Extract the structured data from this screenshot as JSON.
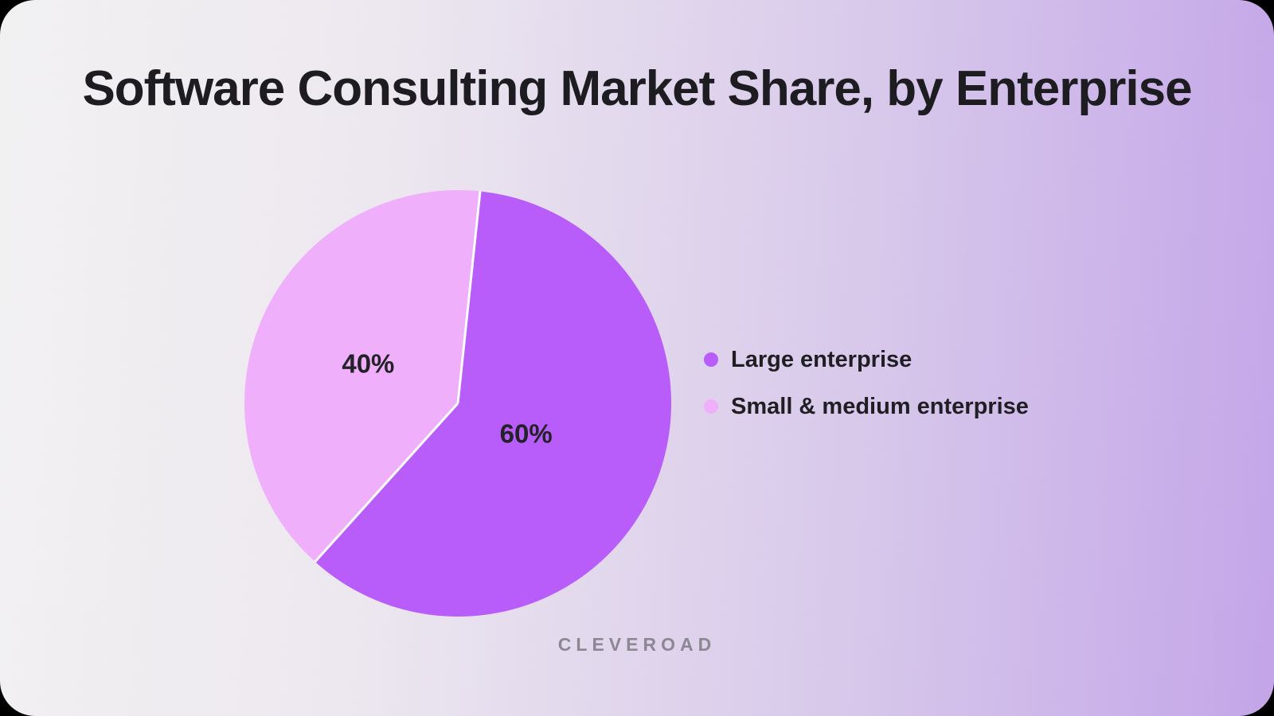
{
  "title": "Software Consulting Market Share, by Enterprise",
  "footer": {
    "brand": "CLEVEROAD"
  },
  "colors": {
    "background_left": "#f4f3f4",
    "background_right": "#c4a5ea",
    "title_text": "#1d1c20",
    "legend_text": "#1f1e23",
    "brand_text": "#8b8892",
    "slice_separator": "#ffffff"
  },
  "chart_data": {
    "type": "pie",
    "title": "Software Consulting Market Share, by Enterprise",
    "legend_position": "right",
    "start_angle_deg": 6,
    "direction": "clockwise",
    "separator_color": "#ffffff",
    "slices": [
      {
        "label": "Large enterprise",
        "value": 60,
        "display": "60%",
        "color": "#b95dfa",
        "label_r_fraction": 0.35
      },
      {
        "label": "Small & medium enterprise",
        "value": 40,
        "display": "40%",
        "color": "#f0affb",
        "label_r_fraction": 0.46
      }
    ]
  }
}
